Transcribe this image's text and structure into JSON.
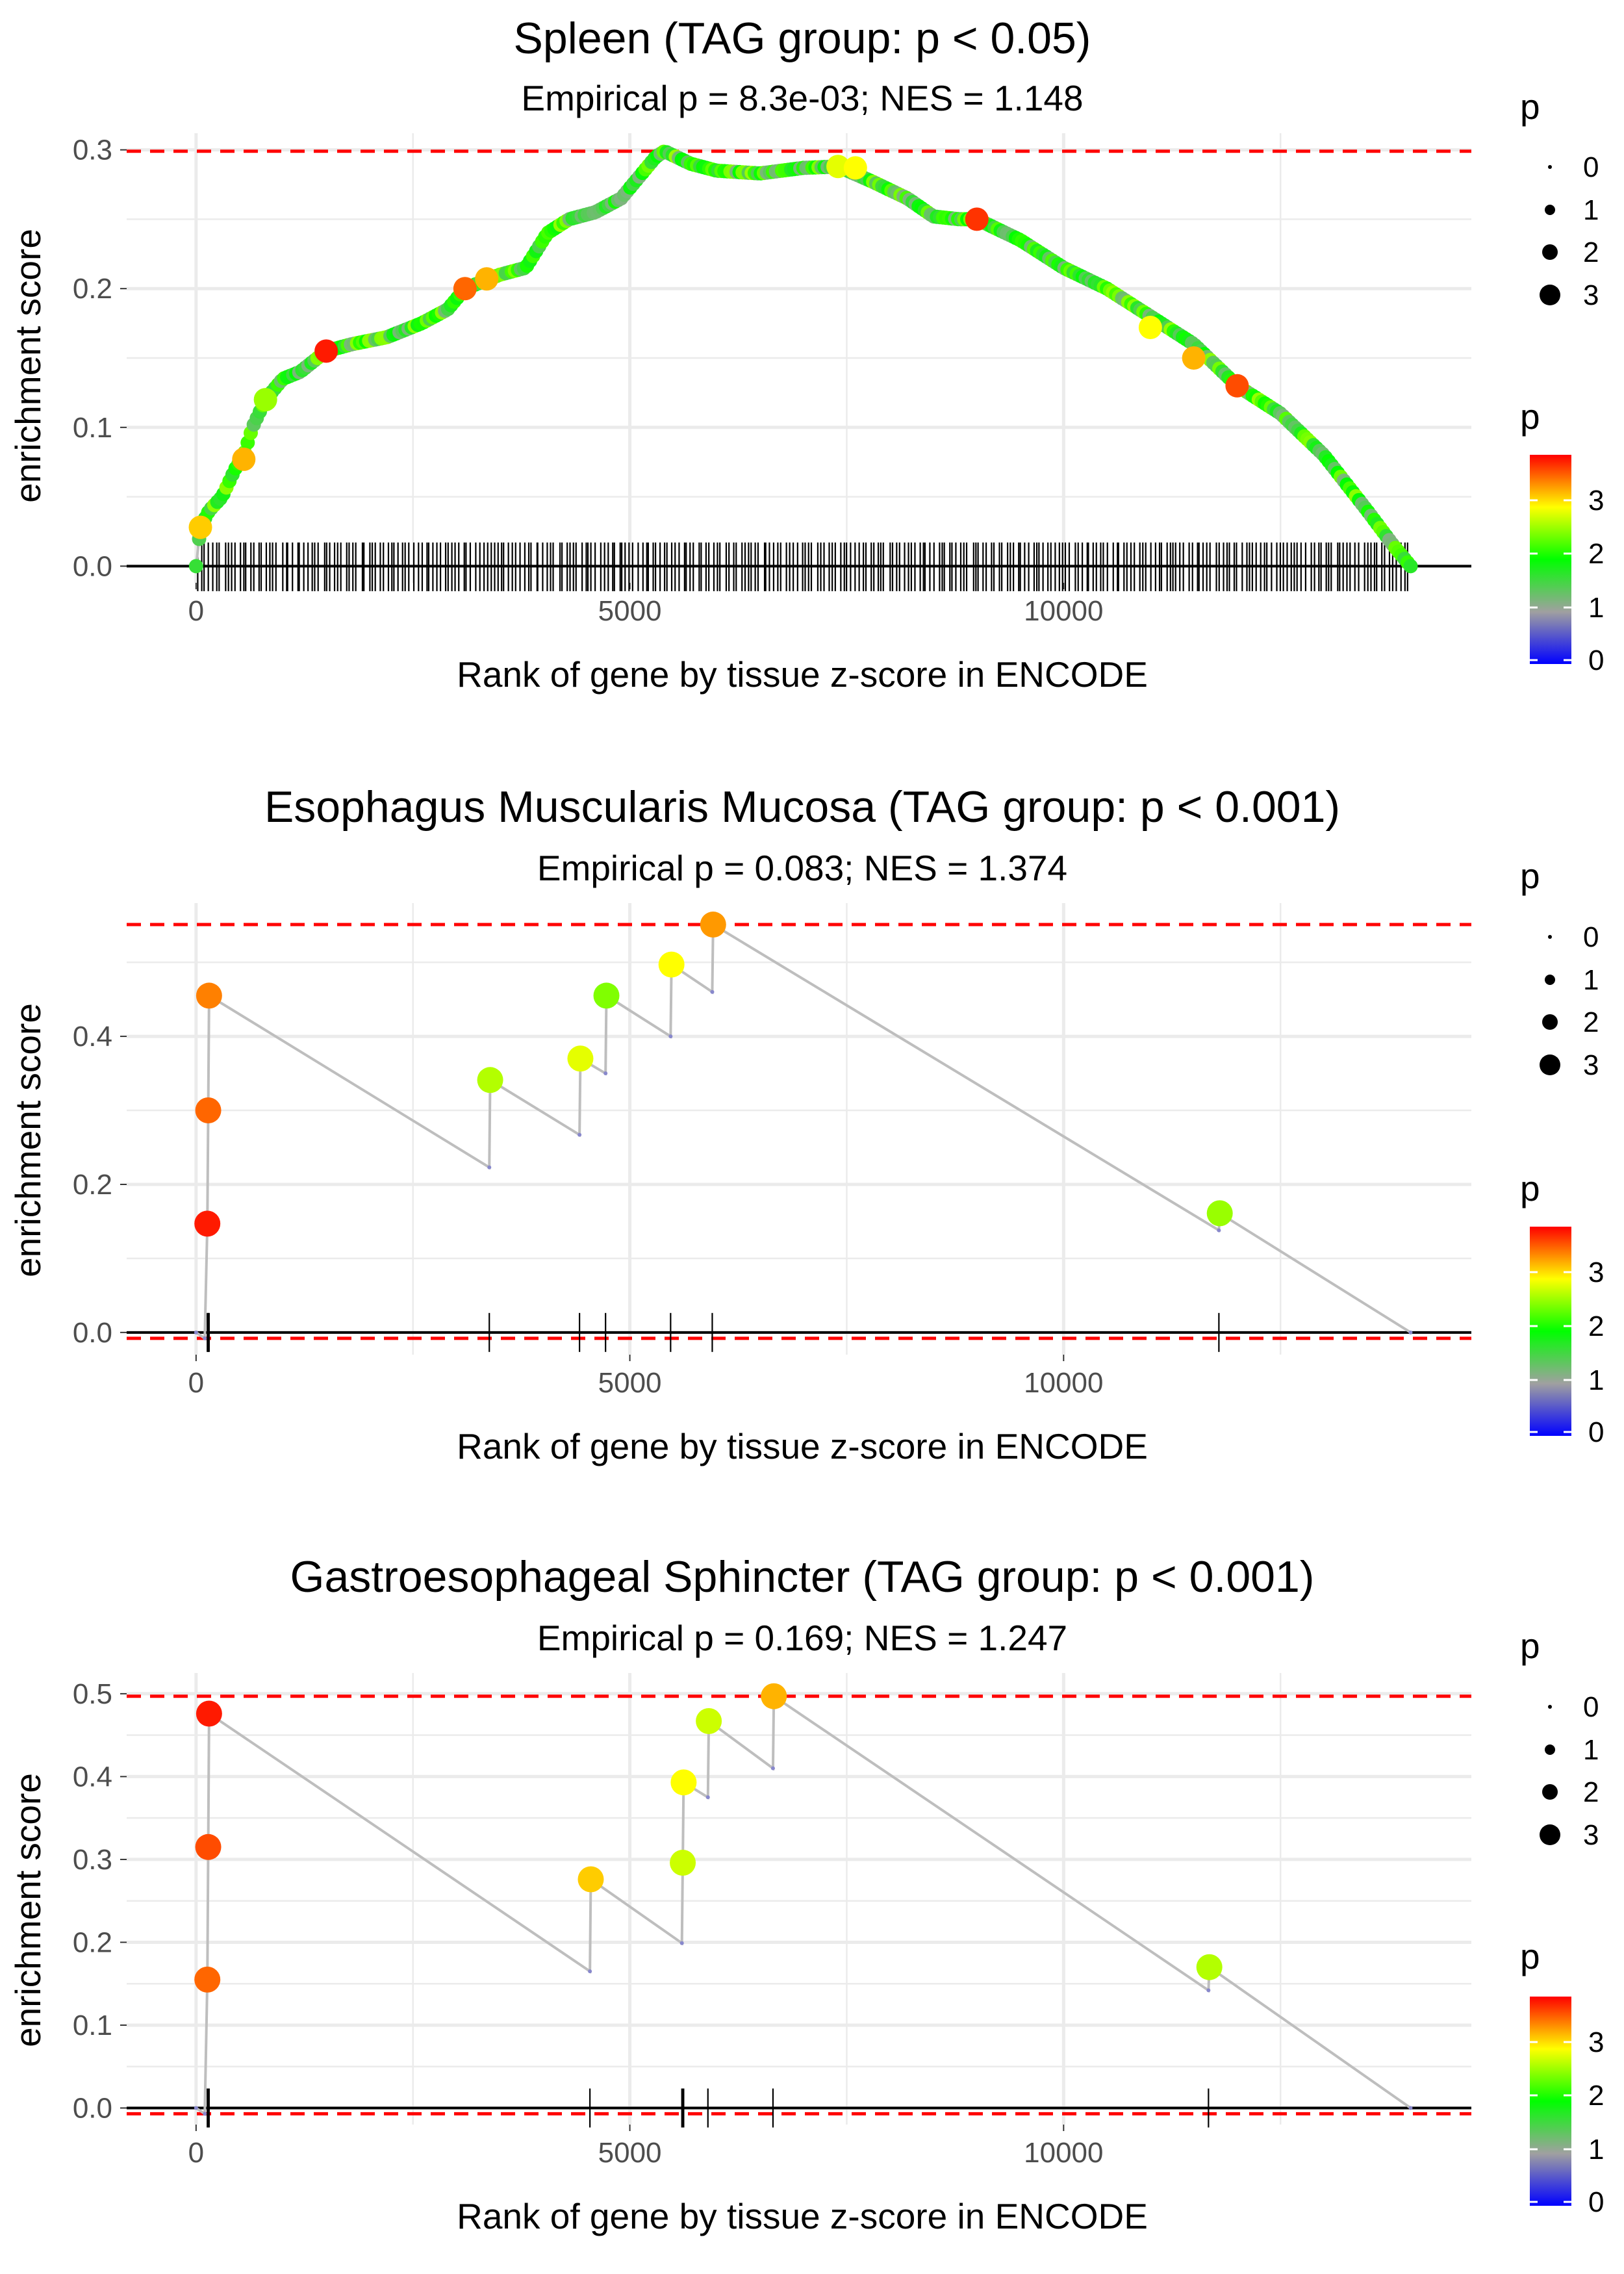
{
  "chart_data": [
    {
      "type": "line",
      "title": "Spleen (TAG group: p < 0.05)",
      "subtitle": "Empirical p = 8.3e-03; NES = 1.148",
      "xlabel": "Rank of gene by tissue z-score in ENCODE",
      "ylabel": "enrichment score",
      "xlim": [
        -800,
        14700
      ],
      "ylim": [
        -0.012,
        0.312
      ],
      "xticks": [
        0,
        5000,
        10000
      ],
      "xtick_labels": [
        "0",
        "5000",
        "10000"
      ],
      "yticks": [
        0,
        0.1,
        0.2,
        0.3
      ],
      "ytick_labels": [
        "0.0",
        "0.1",
        "0.2",
        "0.3"
      ],
      "max_es": 0.299,
      "min_es": 0.0,
      "curve": [
        [
          0,
          0.0
        ],
        [
          50,
          0.028
        ],
        [
          150,
          0.04
        ],
        [
          300,
          0.05
        ],
        [
          450,
          0.07
        ],
        [
          550,
          0.08
        ],
        [
          650,
          0.1
        ],
        [
          800,
          0.12
        ],
        [
          1000,
          0.135
        ],
        [
          1200,
          0.14
        ],
        [
          1500,
          0.155
        ],
        [
          1800,
          0.16
        ],
        [
          2200,
          0.165
        ],
        [
          2600,
          0.175
        ],
        [
          2900,
          0.185
        ],
        [
          3100,
          0.2
        ],
        [
          3300,
          0.205
        ],
        [
          3500,
          0.21
        ],
        [
          3800,
          0.215
        ],
        [
          4050,
          0.24
        ],
        [
          4300,
          0.25
        ],
        [
          4600,
          0.255
        ],
        [
          4900,
          0.265
        ],
        [
          5100,
          0.28
        ],
        [
          5300,
          0.295
        ],
        [
          5400,
          0.299
        ],
        [
          5700,
          0.29
        ],
        [
          6000,
          0.285
        ],
        [
          6500,
          0.283
        ],
        [
          7000,
          0.287
        ],
        [
          7400,
          0.288
        ],
        [
          7800,
          0.277
        ],
        [
          8200,
          0.265
        ],
        [
          8500,
          0.252
        ],
        [
          8800,
          0.25
        ],
        [
          9000,
          0.25
        ],
        [
          9500,
          0.235
        ],
        [
          10000,
          0.215
        ],
        [
          10500,
          0.2
        ],
        [
          11000,
          0.18
        ],
        [
          11500,
          0.16
        ],
        [
          12000,
          0.13
        ],
        [
          12500,
          0.11
        ],
        [
          13000,
          0.08
        ],
        [
          13500,
          0.04
        ],
        [
          13800,
          0.015
        ],
        [
          14000,
          0.0
        ]
      ],
      "gene_ticks_start": 0,
      "gene_ticks_end": 14000,
      "gene_tick_count": 320,
      "highlight_points": [
        [
          50,
          0.028,
          3.2
        ],
        [
          550,
          0.077,
          3.3
        ],
        [
          800,
          0.12,
          2.6
        ],
        [
          1500,
          0.155,
          3.9
        ],
        [
          3100,
          0.2,
          3.6
        ],
        [
          3350,
          0.207,
          3.3
        ],
        [
          7400,
          0.288,
          2.9
        ],
        [
          7600,
          0.287,
          3.0
        ],
        [
          9000,
          0.25,
          3.8
        ],
        [
          11000,
          0.172,
          3.0
        ],
        [
          11500,
          0.15,
          3.3
        ],
        [
          12000,
          0.13,
          3.7
        ]
      ],
      "hline_color": "#ff0000",
      "legend_size": {
        "title": "p",
        "labels": [
          "0",
          "1",
          "2",
          "3"
        ]
      },
      "legend_color": {
        "title": "p",
        "labels": [
          "3",
          "2",
          "1",
          "0"
        ],
        "stops": [
          "#0000ff",
          "#a0a0a0",
          "#00ff00",
          "#ffff00",
          "#ff0000"
        ]
      }
    },
    {
      "type": "line",
      "title": "Esophagus Muscularis Mucosa (TAG group: p < 0.001)",
      "subtitle": "Empirical p = 0.083; NES = 1.374",
      "xlabel": "Rank of gene by tissue z-score in ENCODE",
      "ylabel": "enrichment score",
      "xlim": [
        -800,
        14700
      ],
      "ylim": [
        -0.03,
        0.58
      ],
      "xticks": [
        0,
        5000,
        10000
      ],
      "xtick_labels": [
        "0",
        "5000",
        "10000"
      ],
      "yticks": [
        0,
        0.2,
        0.4
      ],
      "ytick_labels": [
        "0.0",
        "0.2",
        "0.4"
      ],
      "max_es": 0.551,
      "min_es": -0.008,
      "curve": [
        [
          0,
          0.0
        ],
        [
          100,
          -0.008
        ],
        [
          130,
          0.147
        ],
        [
          140,
          0.3
        ],
        [
          150,
          0.455
        ],
        [
          3380,
          0.223
        ],
        [
          3390,
          0.341
        ],
        [
          4420,
          0.267
        ],
        [
          4430,
          0.37
        ],
        [
          4720,
          0.35
        ],
        [
          4730,
          0.455
        ],
        [
          5470,
          0.4
        ],
        [
          5480,
          0.497
        ],
        [
          5950,
          0.46
        ],
        [
          5960,
          0.551
        ],
        [
          11790,
          0.138
        ],
        [
          11800,
          0.161
        ],
        [
          14000,
          0.0
        ]
      ],
      "gene_ticks": [
        130,
        140,
        150,
        3380,
        4420,
        4720,
        5470,
        5950,
        11790
      ],
      "highlight_points": [
        [
          130,
          0.147,
          3.9
        ],
        [
          140,
          0.3,
          3.6
        ],
        [
          150,
          0.455,
          3.5
        ],
        [
          3390,
          0.341,
          2.7
        ],
        [
          4430,
          0.37,
          2.9
        ],
        [
          4730,
          0.455,
          2.5
        ],
        [
          5480,
          0.497,
          3.0
        ],
        [
          5960,
          0.551,
          3.4
        ],
        [
          11800,
          0.161,
          2.6
        ]
      ],
      "hline_color": "#ff0000",
      "legend_size": {
        "title": "p",
        "labels": [
          "0",
          "1",
          "2",
          "3"
        ]
      },
      "legend_color": {
        "title": "p",
        "labels": [
          "3",
          "2",
          "1",
          "0"
        ],
        "stops": [
          "#0000ff",
          "#a0a0a0",
          "#00ff00",
          "#ffff00",
          "#ff0000"
        ]
      }
    },
    {
      "type": "line",
      "title": "Gastroesophageal Sphincter (TAG group: p < 0.001)",
      "subtitle": "Empirical p = 0.169; NES = 1.247",
      "xlabel": "Rank of gene by tissue z-score in ENCODE",
      "ylabel": "enrichment score",
      "xlim": [
        -800,
        14700
      ],
      "ylim": [
        -0.02,
        0.525
      ],
      "xticks": [
        0,
        5000,
        10000
      ],
      "xtick_labels": [
        "0",
        "5000",
        "10000"
      ],
      "yticks": [
        0,
        0.1,
        0.2,
        0.3,
        0.4,
        0.5
      ],
      "ytick_labels": [
        "0.0",
        "0.1",
        "0.2",
        "0.3",
        "0.4",
        "0.5"
      ],
      "max_es": 0.497,
      "min_es": -0.007,
      "curve": [
        [
          0,
          0.0
        ],
        [
          100,
          -0.007
        ],
        [
          130,
          0.155
        ],
        [
          140,
          0.315
        ],
        [
          150,
          0.476
        ],
        [
          4540,
          0.165
        ],
        [
          4550,
          0.276
        ],
        [
          5600,
          0.199
        ],
        [
          5610,
          0.296
        ],
        [
          5620,
          0.393
        ],
        [
          5900,
          0.375
        ],
        [
          5910,
          0.467
        ],
        [
          6650,
          0.41
        ],
        [
          6660,
          0.497
        ],
        [
          11670,
          0.142
        ],
        [
          11680,
          0.17
        ],
        [
          14000,
          0.0
        ]
      ],
      "gene_ticks": [
        130,
        140,
        150,
        4540,
        5600,
        5610,
        5620,
        5900,
        6650,
        11670
      ],
      "highlight_points": [
        [
          130,
          0.155,
          3.6
        ],
        [
          140,
          0.315,
          3.7
        ],
        [
          150,
          0.476,
          3.9
        ],
        [
          4550,
          0.276,
          3.2
        ],
        [
          5610,
          0.296,
          2.8
        ],
        [
          5620,
          0.393,
          3.0
        ],
        [
          5910,
          0.467,
          2.8
        ],
        [
          6660,
          0.497,
          3.3
        ],
        [
          11680,
          0.17,
          2.7
        ]
      ],
      "hline_color": "#ff0000",
      "legend_size": {
        "title": "p",
        "labels": [
          "0",
          "1",
          "2",
          "3"
        ]
      },
      "legend_color": {
        "title": "p",
        "labels": [
          "3",
          "2",
          "1",
          "0"
        ],
        "stops": [
          "#0000ff",
          "#a0a0a0",
          "#00ff00",
          "#ffff00",
          "#ff0000"
        ]
      }
    }
  ]
}
